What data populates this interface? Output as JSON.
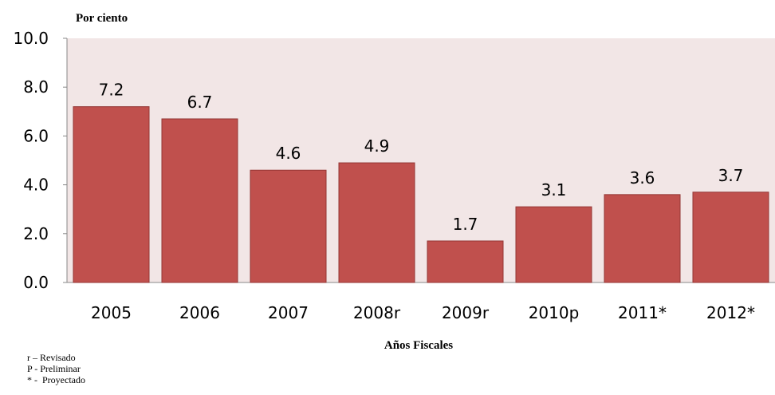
{
  "chart_data": {
    "type": "bar",
    "ylabel": "Por ciento",
    "xlabel": "Años Fiscales",
    "categories": [
      "2005",
      "2006",
      "2007",
      "2008r",
      "2009r",
      "2010p",
      "2011*",
      "2012*"
    ],
    "values": [
      7.2,
      6.7,
      4.6,
      4.9,
      1.7,
      3.1,
      3.6,
      3.7
    ],
    "data_labels": [
      "7.2",
      "6.7",
      "4.6",
      "4.9",
      "1.7",
      "3.1",
      "3.6",
      "3.7"
    ],
    "ylim": [
      0,
      10
    ],
    "yticks": [
      "0.0",
      "2.0",
      "4.0",
      "6.0",
      "8.0",
      "10.0"
    ],
    "grid": false,
    "colors": {
      "bar": "#c0504d",
      "bar_edge": "#943634",
      "plot_bg": "#f2e6e6"
    }
  },
  "notes": [
    "r – Revisado",
    "P - Preliminar",
    "* -  Proyectado"
  ]
}
